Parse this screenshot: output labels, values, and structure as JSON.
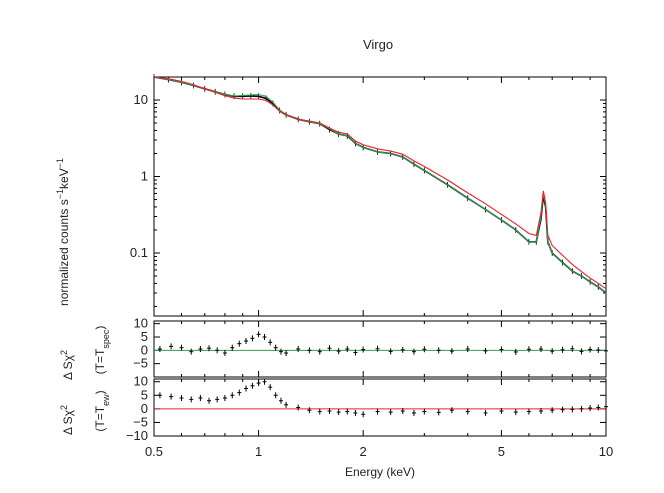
{
  "chart_data": {
    "type": "line",
    "title": "Virgo",
    "xlabel": "Energy (keV)",
    "xscale": "log",
    "xlim": [
      0.5,
      10
    ],
    "x_ticks": [
      0.5,
      1,
      2,
      5,
      10
    ],
    "x_tick_labels": [
      "0.5",
      "1",
      "2",
      "5",
      "10"
    ],
    "colors": {
      "data": "#000000",
      "model_spec": "#2e9e58",
      "model_ew": "#e8222a",
      "frame": "#000000"
    },
    "panels": [
      {
        "id": "spectrum",
        "ylabel_parts": {
          "main": "normalized counts s",
          "sup1": "−1",
          "mid": "keV",
          "sup2": "−1"
        },
        "yscale": "log",
        "ylim": [
          0.015,
          20
        ],
        "y_ticks": [
          0.1,
          1,
          10
        ],
        "y_tick_labels": [
          "0.1",
          "1",
          "10"
        ],
        "series": [
          {
            "role": "data",
            "x": [
              0.5,
              0.55,
              0.6,
              0.65,
              0.7,
              0.75,
              0.8,
              0.85,
              0.9,
              0.95,
              1.0,
              1.05,
              1.1,
              1.15,
              1.2,
              1.3,
              1.4,
              1.5,
              1.6,
              1.7,
              1.8,
              1.9,
              2.0,
              2.2,
              2.4,
              2.6,
              2.8,
              3.0,
              3.5,
              4.0,
              4.5,
              5.0,
              5.5,
              6.0,
              6.3,
              6.5,
              6.6,
              6.7,
              6.8,
              7.0,
              7.5,
              8.0,
              8.5,
              9.0,
              9.5,
              10.0
            ],
            "y": [
              20,
              18.5,
              17,
              15.5,
              14,
              12.8,
              11.8,
              11.2,
              11.2,
              11.3,
              11.2,
              10.5,
              9.0,
              7.3,
              6.4,
              5.6,
              5.2,
              4.9,
              4.1,
              3.6,
              3.4,
              2.7,
              2.4,
              2.1,
              2.0,
              1.8,
              1.45,
              1.2,
              0.78,
              0.52,
              0.37,
              0.27,
              0.2,
              0.14,
              0.14,
              0.28,
              0.56,
              0.4,
              0.14,
              0.1,
              0.075,
              0.058,
              0.05,
              0.042,
              0.036,
              0.03
            ]
          },
          {
            "role": "model_spec",
            "x": [
              0.5,
              0.55,
              0.6,
              0.65,
              0.7,
              0.75,
              0.8,
              0.85,
              0.9,
              0.95,
              1.0,
              1.05,
              1.1,
              1.15,
              1.2,
              1.3,
              1.4,
              1.5,
              1.6,
              1.7,
              1.8,
              1.9,
              2.0,
              2.2,
              2.4,
              2.6,
              2.8,
              3.0,
              3.5,
              4.0,
              4.5,
              5.0,
              5.5,
              6.0,
              6.3,
              6.5,
              6.6,
              6.7,
              6.8,
              7.0,
              7.5,
              8.0,
              8.5,
              9.0,
              9.5,
              10.0
            ],
            "y": [
              20,
              18.5,
              17,
              15.5,
              14,
              12.8,
              11.8,
              11.3,
              11.5,
              11.6,
              11.8,
              11.2,
              9.3,
              7.4,
              6.4,
              5.6,
              5.2,
              4.9,
              4.2,
              3.6,
              3.4,
              2.7,
              2.4,
              2.1,
              2.0,
              1.8,
              1.45,
              1.2,
              0.78,
              0.52,
              0.37,
              0.27,
              0.2,
              0.14,
              0.14,
              0.3,
              0.6,
              0.42,
              0.14,
              0.1,
              0.075,
              0.058,
              0.05,
              0.042,
              0.036,
              0.03
            ]
          },
          {
            "role": "model_ew",
            "x": [
              0.5,
              0.55,
              0.6,
              0.65,
              0.7,
              0.75,
              0.8,
              0.85,
              0.9,
              0.95,
              1.0,
              1.05,
              1.1,
              1.15,
              1.2,
              1.3,
              1.4,
              1.5,
              1.6,
              1.7,
              1.8,
              1.9,
              2.0,
              2.2,
              2.4,
              2.6,
              2.8,
              3.0,
              3.5,
              4.0,
              4.5,
              5.0,
              5.5,
              6.0,
              6.3,
              6.5,
              6.6,
              6.7,
              6.8,
              7.0,
              7.5,
              8.0,
              8.5,
              9.0,
              9.5,
              10.0
            ],
            "y": [
              20,
              19,
              17.5,
              15.8,
              14,
              12.6,
              11.4,
              10.6,
              10.3,
              10.3,
              10.3,
              9.9,
              8.6,
              7.1,
              6.3,
              5.6,
              5.3,
              5.0,
              4.3,
              3.8,
              3.6,
              2.9,
              2.6,
              2.3,
              2.15,
              1.95,
              1.6,
              1.35,
              0.9,
              0.61,
              0.44,
              0.32,
              0.24,
              0.18,
              0.17,
              0.34,
              0.65,
              0.46,
              0.17,
              0.125,
              0.093,
              0.071,
              0.057,
              0.047,
              0.04,
              0.034
            ]
          }
        ]
      },
      {
        "id": "residuals_spec",
        "ylabel_parts": {
          "main": "Δ Sχ",
          "sup": "2",
          "paren1": "(T=T",
          "sub": "spec",
          "paren2": ")"
        },
        "ylim": [
          -10,
          11
        ],
        "y_ticks": [
          10,
          5,
          0,
          -5
        ],
        "y_tick_labels": [
          "10",
          "5",
          "0",
          "−5"
        ],
        "zero_line_color": "#2e9e58",
        "series": [
          {
            "role": "residuals",
            "x": [
              0.52,
              0.56,
              0.6,
              0.64,
              0.68,
              0.72,
              0.76,
              0.8,
              0.84,
              0.88,
              0.92,
              0.96,
              1.0,
              1.04,
              1.08,
              1.12,
              1.16,
              1.2,
              1.3,
              1.4,
              1.5,
              1.6,
              1.7,
              1.8,
              1.9,
              2.0,
              2.2,
              2.4,
              2.6,
              2.8,
              3.0,
              3.3,
              3.6,
              4.0,
              4.5,
              5.0,
              5.5,
              6.0,
              6.5,
              7.0,
              7.5,
              8.0,
              8.5,
              9.0,
              9.5,
              10.0
            ],
            "y": [
              0.5,
              1.5,
              1.0,
              -0.5,
              0.5,
              0.8,
              0.0,
              -1.0,
              1.0,
              2.5,
              3.5,
              4.5,
              6.0,
              5.0,
              3.0,
              1.0,
              -0.5,
              -1.0,
              0.5,
              0.0,
              -0.5,
              0.8,
              -0.3,
              0.5,
              -0.8,
              0.3,
              0.6,
              -0.4,
              0.2,
              -0.5,
              0.4,
              0.0,
              -0.3,
              0.5,
              -0.2,
              0.3,
              -0.6,
              0.4,
              0.5,
              -0.3,
              0.2,
              0.6,
              -0.4,
              0.3,
              0.1,
              -0.2
            ]
          }
        ]
      },
      {
        "id": "residuals_ew",
        "ylabel_parts": {
          "main": "Δ Sχ",
          "sup": "2",
          "paren1": "(T=T",
          "sub": "ew",
          "paren2": ")"
        },
        "ylim": [
          -10,
          11
        ],
        "y_ticks": [
          10,
          5,
          0,
          -5,
          -10
        ],
        "y_tick_labels": [
          "10",
          "5",
          "0",
          "−5",
          "−10"
        ],
        "zero_line_color": "#e8222a",
        "series": [
          {
            "role": "residuals",
            "x": [
              0.52,
              0.56,
              0.6,
              0.64,
              0.68,
              0.72,
              0.76,
              0.8,
              0.84,
              0.88,
              0.92,
              0.96,
              1.0,
              1.04,
              1.08,
              1.12,
              1.16,
              1.2,
              1.3,
              1.4,
              1.5,
              1.6,
              1.7,
              1.8,
              1.9,
              2.0,
              2.2,
              2.4,
              2.6,
              2.8,
              3.0,
              3.3,
              3.6,
              4.0,
              4.5,
              5.0,
              5.5,
              6.0,
              6.5,
              7.0,
              7.5,
              8.0,
              8.5,
              9.0,
              9.5,
              10.0
            ],
            "y": [
              5.0,
              4.5,
              4.0,
              3.5,
              4.0,
              3.0,
              3.5,
              4.0,
              5.0,
              6.0,
              7.5,
              8.5,
              9.5,
              10.0,
              8.0,
              5.0,
              3.0,
              1.5,
              0.5,
              -0.5,
              -1.0,
              -0.8,
              -1.2,
              -1.0,
              -1.5,
              -2.0,
              -1.0,
              -1.2,
              -0.8,
              -1.5,
              -1.0,
              -1.3,
              -0.5,
              -1.0,
              -1.5,
              -0.8,
              -1.2,
              -1.0,
              -0.8,
              -0.5,
              -0.3,
              -0.2,
              0.0,
              0.3,
              0.5,
              0.8
            ]
          }
        ]
      }
    ]
  }
}
